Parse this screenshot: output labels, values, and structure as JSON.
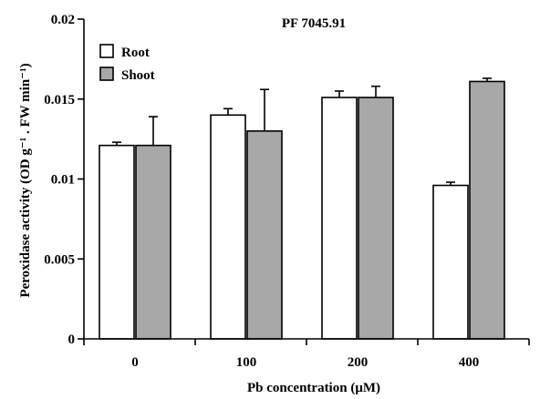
{
  "chart_data": {
    "type": "bar",
    "title": "PF 7045.91",
    "xlabel": "Pb concentration (μM)",
    "ylabel": "Peroxidase activity (OD g⁻¹ . FW min⁻¹)",
    "categories": [
      "0",
      "100",
      "200",
      "400"
    ],
    "ylim": [
      0,
      0.02
    ],
    "yticks": [
      "0",
      "0.005",
      "0.01",
      "0.015",
      "0.02"
    ],
    "ytick_values": [
      0,
      0.005,
      0.01,
      0.015,
      0.02
    ],
    "legend_position": "top-left",
    "grid": false,
    "series": [
      {
        "name": "Root",
        "color": "#ffffff",
        "values": [
          0.0121,
          0.014,
          0.0151,
          0.0096
        ],
        "errors": [
          0.0002,
          0.0004,
          0.0004,
          0.0002
        ]
      },
      {
        "name": "Shoot",
        "color": "#a8a8a8",
        "values": [
          0.0121,
          0.013,
          0.0151,
          0.0161
        ],
        "errors": [
          0.0018,
          0.0026,
          0.0007,
          0.0002
        ]
      }
    ]
  }
}
